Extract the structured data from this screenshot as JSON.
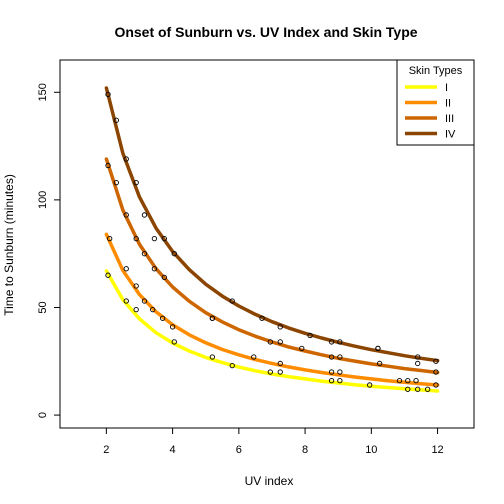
{
  "chart_data": {
    "type": "line",
    "title": "Onset of Sunburn vs. UV Index and Skin Type",
    "xlabel": "UV index",
    "ylabel": "Time to Sunburn (minutes)",
    "xlim": [
      0.6,
      13.1
    ],
    "ylim": [
      -6,
      165
    ],
    "xticks": [
      2,
      4,
      6,
      8,
      10,
      12
    ],
    "yticks": [
      0,
      50,
      100,
      150
    ],
    "grid": false,
    "legend": {
      "title": "Skin Types",
      "placement": "top-right"
    },
    "series": [
      {
        "name": "I",
        "color": "#FFFF00",
        "curve_x": [
          2,
          2.5,
          3,
          3.5,
          4,
          4.5,
          5,
          5.5,
          6,
          6.5,
          7,
          7.5,
          8,
          8.5,
          9,
          9.5,
          10,
          10.5,
          11,
          11.5,
          12
        ],
        "curve_y": [
          67,
          53.6,
          44.7,
          38.3,
          33.5,
          29.8,
          26.8,
          24.4,
          22.3,
          20.6,
          19.1,
          17.9,
          16.8,
          15.8,
          14.9,
          14.1,
          13.4,
          12.8,
          12.2,
          11.7,
          11.2
        ],
        "points": [
          [
            2.05,
            65
          ],
          [
            2.6,
            53
          ],
          [
            2.9,
            49
          ],
          [
            4.05,
            34
          ],
          [
            5.2,
            27
          ],
          [
            5.8,
            23
          ],
          [
            6.95,
            20
          ],
          [
            7.25,
            20
          ],
          [
            8.8,
            16
          ],
          [
            9.05,
            16
          ],
          [
            9.95,
            14
          ],
          [
            11.1,
            12
          ],
          [
            11.4,
            12
          ],
          [
            11.7,
            12
          ]
        ]
      },
      {
        "name": "II",
        "color": "#FF8C00",
        "curve_x": [
          2,
          2.5,
          3,
          3.5,
          4,
          4.5,
          5,
          5.5,
          6,
          6.5,
          7,
          7.5,
          8,
          8.5,
          9,
          9.5,
          10,
          10.5,
          11,
          11.5,
          12
        ],
        "curve_y": [
          84,
          67.2,
          56,
          48,
          42,
          37.3,
          33.6,
          30.5,
          28,
          25.8,
          24,
          22.4,
          21,
          19.8,
          18.7,
          17.7,
          16.8,
          16,
          15.3,
          14.6,
          14
        ],
        "points": [
          [
            2.1,
            82
          ],
          [
            2.6,
            68
          ],
          [
            2.9,
            60
          ],
          [
            3.15,
            53
          ],
          [
            3.4,
            49
          ],
          [
            3.7,
            45
          ],
          [
            4.0,
            41
          ],
          [
            5.2,
            45
          ],
          [
            6.45,
            27
          ],
          [
            7.25,
            24
          ],
          [
            8.8,
            20
          ],
          [
            9.05,
            20
          ],
          [
            10.25,
            24
          ],
          [
            10.85,
            16
          ],
          [
            11.1,
            16
          ],
          [
            11.35,
            16
          ],
          [
            11.95,
            14
          ]
        ]
      },
      {
        "name": "III",
        "color": "#CD6600",
        "curve_x": [
          2,
          2.5,
          3,
          3.5,
          4,
          4.5,
          5,
          5.5,
          6,
          6.5,
          7,
          7.5,
          8,
          8.5,
          9,
          9.5,
          10,
          10.5,
          11,
          11.5,
          12
        ],
        "curve_y": [
          119,
          95.2,
          79.3,
          68,
          59.5,
          52.9,
          47.6,
          43.3,
          39.7,
          36.6,
          34,
          31.7,
          29.8,
          28,
          26.4,
          25.1,
          23.8,
          22.7,
          21.6,
          20.7,
          19.8
        ],
        "points": [
          [
            2.05,
            116
          ],
          [
            2.3,
            108
          ],
          [
            2.6,
            93
          ],
          [
            2.9,
            82
          ],
          [
            3.15,
            75
          ],
          [
            3.45,
            68
          ],
          [
            3.75,
            64
          ],
          [
            5.2,
            45
          ],
          [
            6.95,
            34
          ],
          [
            7.25,
            34
          ],
          [
            7.9,
            31
          ],
          [
            8.8,
            27
          ],
          [
            9.05,
            27
          ],
          [
            10.2,
            31
          ],
          [
            11.4,
            24
          ],
          [
            11.95,
            20
          ]
        ]
      },
      {
        "name": "IV",
        "color": "#8B4500",
        "curve_x": [
          2,
          2.5,
          3,
          3.5,
          4,
          4.5,
          5,
          5.5,
          6,
          6.5,
          7,
          7.5,
          8,
          8.5,
          9,
          9.5,
          10,
          10.5,
          11,
          11.5,
          12
        ],
        "curve_y": [
          152,
          121.6,
          101.3,
          86.9,
          76,
          67.6,
          60.8,
          55.3,
          50.7,
          46.8,
          43.4,
          40.5,
          38,
          35.8,
          33.8,
          32,
          30.4,
          29,
          27.6,
          26.4,
          25.3
        ],
        "points": [
          [
            2.05,
            149
          ],
          [
            2.3,
            137
          ],
          [
            2.6,
            119
          ],
          [
            2.9,
            108
          ],
          [
            3.15,
            93
          ],
          [
            3.45,
            82
          ],
          [
            3.75,
            82
          ],
          [
            4.05,
            75
          ],
          [
            5.8,
            53
          ],
          [
            6.7,
            45
          ],
          [
            7.25,
            41
          ],
          [
            8.15,
            37
          ],
          [
            8.8,
            34
          ],
          [
            9.05,
            34
          ],
          [
            10.2,
            31
          ],
          [
            11.4,
            27
          ],
          [
            11.95,
            25
          ]
        ]
      }
    ]
  }
}
